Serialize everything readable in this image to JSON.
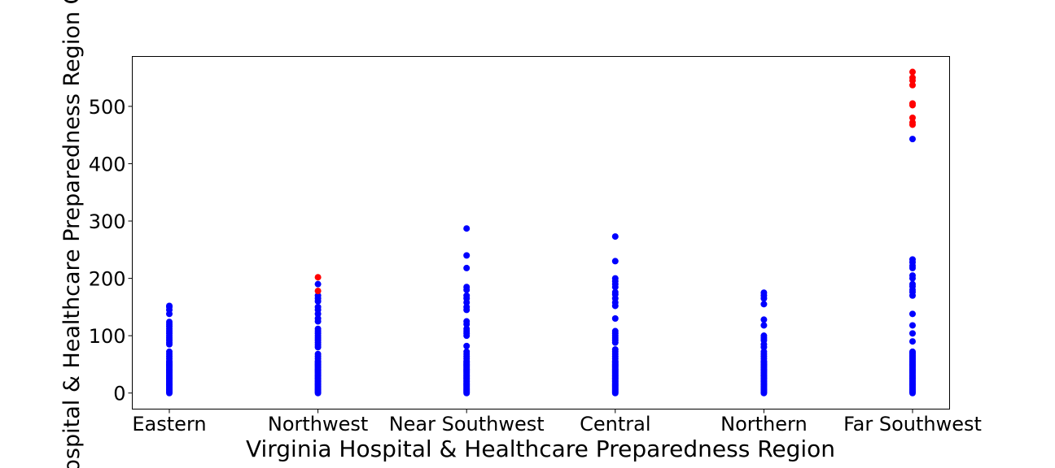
{
  "chart_data": {
    "type": "scatter",
    "title": "",
    "xlabel": "Virginia Hospital & Healthcare Preparedness Region",
    "ylabel": "Hospital & Healthcare Preparedness Region Ca",
    "categories": [
      "Eastern",
      "Northwest",
      "Near Southwest",
      "Central",
      "Northern",
      "Far Southwest"
    ],
    "ylim": [
      -28,
      587
    ],
    "yticks": [
      0,
      100,
      200,
      300,
      400,
      500
    ],
    "grid": false,
    "legend": "none",
    "colors": {
      "normal": "#0000ff",
      "highlight": "#ff0000"
    },
    "series": [
      {
        "color": "normal",
        "points": [
          [
            "Eastern",
            [
              0,
              2,
              4,
              6,
              8,
              10,
              12,
              14,
              16,
              18,
              20,
              22,
              24,
              26,
              28,
              30,
              32,
              34,
              36,
              38,
              40,
              42,
              44,
              46,
              48,
              50,
              52,
              54,
              56,
              60,
              64,
              68,
              72,
              85,
              88,
              92,
              96,
              100,
              104,
              108,
              112,
              116,
              120,
              124,
              138,
              145,
              150,
              152
            ]
          ],
          [
            "Northwest",
            [
              0,
              2,
              4,
              6,
              8,
              10,
              12,
              14,
              16,
              18,
              20,
              22,
              24,
              26,
              28,
              30,
              32,
              34,
              36,
              38,
              40,
              42,
              44,
              46,
              48,
              50,
              52,
              54,
              56,
              60,
              64,
              68,
              80,
              84,
              88,
              92,
              96,
              100,
              104,
              108,
              112,
              125,
              130,
              138,
              145,
              150,
              160,
              165,
              170,
              190
            ]
          ],
          [
            "Near Southwest",
            [
              0,
              2,
              4,
              6,
              8,
              10,
              12,
              14,
              16,
              18,
              20,
              22,
              24,
              26,
              28,
              30,
              32,
              34,
              36,
              38,
              40,
              42,
              44,
              46,
              48,
              50,
              52,
              54,
              56,
              60,
              64,
              68,
              72,
              82,
              100,
              104,
              108,
              112,
              120,
              125,
              145,
              150,
              158,
              165,
              170,
              180,
              185,
              218,
              240,
              287
            ]
          ],
          [
            "Central",
            [
              0,
              2,
              4,
              6,
              8,
              10,
              12,
              14,
              16,
              18,
              20,
              22,
              24,
              26,
              28,
              30,
              32,
              34,
              36,
              38,
              40,
              42,
              44,
              46,
              48,
              50,
              52,
              54,
              56,
              60,
              64,
              68,
              72,
              76,
              88,
              92,
              96,
              100,
              104,
              108,
              130,
              152,
              158,
              165,
              172,
              176,
              185,
              190,
              195,
              200,
              230,
              273
            ]
          ],
          [
            "Northern",
            [
              0,
              2,
              4,
              6,
              8,
              10,
              12,
              14,
              16,
              18,
              20,
              22,
              24,
              26,
              28,
              30,
              32,
              34,
              36,
              38,
              40,
              42,
              44,
              46,
              48,
              50,
              52,
              54,
              56,
              60,
              64,
              68,
              72,
              80,
              85,
              92,
              96,
              100,
              118,
              128,
              155,
              165,
              170,
              175
            ]
          ],
          [
            "Far Southwest",
            [
              0,
              2,
              4,
              6,
              8,
              10,
              12,
              14,
              16,
              18,
              20,
              22,
              24,
              26,
              28,
              30,
              32,
              34,
              36,
              38,
              40,
              42,
              44,
              46,
              48,
              50,
              52,
              54,
              56,
              58,
              60,
              62,
              64,
              66,
              68,
              70,
              72,
              90,
              104,
              118,
              138,
              170,
              176,
              180,
              186,
              190,
              200,
              205,
              218,
              222,
              228,
              233,
              443
            ]
          ]
        ]
      },
      {
        "color": "highlight",
        "points": [
          [
            "Northwest",
            [
              178,
              202
            ]
          ],
          [
            "Far Southwest",
            [
              468,
              472,
              480,
              502,
              505,
              537,
              545,
              550,
              560
            ]
          ]
        ]
      }
    ]
  }
}
